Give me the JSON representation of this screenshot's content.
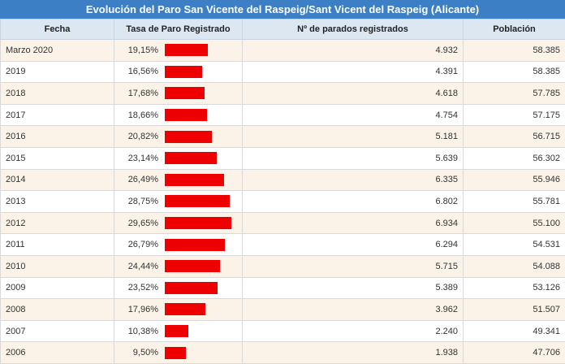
{
  "title": "Evolución del Paro San Vicente del Raspeig/Sant Vicent del Raspeig (Alicante)",
  "columns": [
    "Fecha",
    "Tasa de Paro Registrado",
    "Nº de parados registrados",
    "Población"
  ],
  "bar_color": "#ee0000",
  "header_color": "#3d7fc4",
  "rows": [
    {
      "fecha": "Marzo 2020",
      "tasa": "19,15%",
      "tasa_value": 19.15,
      "parados": "4.932",
      "poblacion": "58.385"
    },
    {
      "fecha": "2019",
      "tasa": "16,56%",
      "tasa_value": 16.56,
      "parados": "4.391",
      "poblacion": "58.385"
    },
    {
      "fecha": "2018",
      "tasa": "17,68%",
      "tasa_value": 17.68,
      "parados": "4.618",
      "poblacion": "57.785"
    },
    {
      "fecha": "2017",
      "tasa": "18,66%",
      "tasa_value": 18.66,
      "parados": "4.754",
      "poblacion": "57.175"
    },
    {
      "fecha": "2016",
      "tasa": "20,82%",
      "tasa_value": 20.82,
      "parados": "5.181",
      "poblacion": "56.715"
    },
    {
      "fecha": "2015",
      "tasa": "23,14%",
      "tasa_value": 23.14,
      "parados": "5.639",
      "poblacion": "56.302"
    },
    {
      "fecha": "2014",
      "tasa": "26,49%",
      "tasa_value": 26.49,
      "parados": "6.335",
      "poblacion": "55.946"
    },
    {
      "fecha": "2013",
      "tasa": "28,75%",
      "tasa_value": 28.75,
      "parados": "6.802",
      "poblacion": "55.781"
    },
    {
      "fecha": "2012",
      "tasa": "29,65%",
      "tasa_value": 29.65,
      "parados": "6.934",
      "poblacion": "55.100"
    },
    {
      "fecha": "2011",
      "tasa": "26,79%",
      "tasa_value": 26.79,
      "parados": "6.294",
      "poblacion": "54.531"
    },
    {
      "fecha": "2010",
      "tasa": "24,44%",
      "tasa_value": 24.44,
      "parados": "5.715",
      "poblacion": "54.088"
    },
    {
      "fecha": "2009",
      "tasa": "23,52%",
      "tasa_value": 23.52,
      "parados": "5.389",
      "poblacion": "53.126"
    },
    {
      "fecha": "2008",
      "tasa": "17,96%",
      "tasa_value": 17.96,
      "parados": "3.962",
      "poblacion": "51.507"
    },
    {
      "fecha": "2007",
      "tasa": "10,38%",
      "tasa_value": 10.38,
      "parados": "2.240",
      "poblacion": "49.341"
    },
    {
      "fecha": "2006",
      "tasa": "9,50%",
      "tasa_value": 9.5,
      "parados": "1.938",
      "poblacion": "47.706"
    }
  ]
}
